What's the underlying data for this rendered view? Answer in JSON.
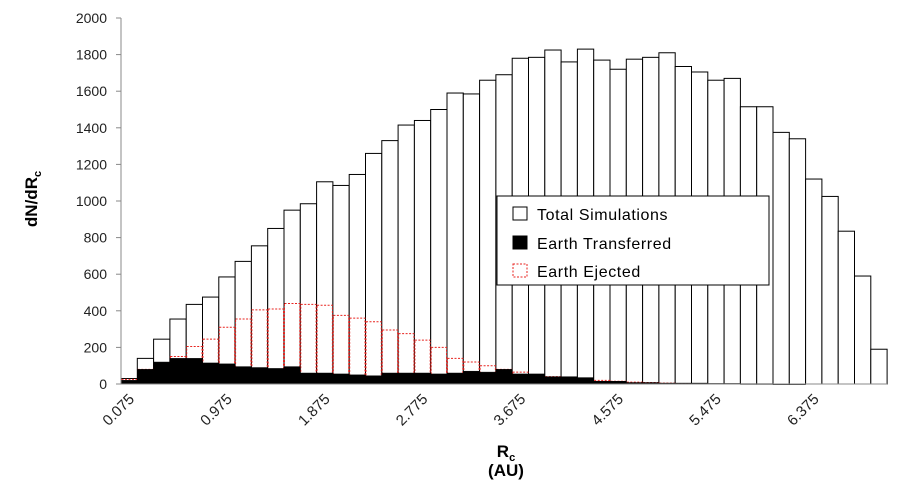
{
  "chart_data": {
    "type": "bar",
    "title": "",
    "xlabel": "R",
    "xlabel_subscript": "c",
    "xlabel_units": "(AU)",
    "ylabel": "dN/dR",
    "ylabel_subscript": "c",
    "ylim": [
      0,
      2000
    ],
    "yticks": [
      0,
      200,
      400,
      600,
      800,
      1000,
      1200,
      1400,
      1600,
      1800,
      2000
    ],
    "xtick_labels": [
      "0.075",
      "0.975",
      "1.875",
      "2.775",
      "3.675",
      "4.575",
      "5.475",
      "6.375"
    ],
    "xtick_every": 6,
    "grid": false,
    "legend_position": "center-right",
    "colors": {
      "total_fill": "#ffffff",
      "total_edge": "#000000",
      "transferred_fill": "#000000",
      "ejected_edge": "#e8231f"
    },
    "series": [
      {
        "name": "Total Simulations",
        "values": [
          30,
          140,
          245,
          355,
          435,
          475,
          585,
          670,
          755,
          850,
          950,
          985,
          1105,
          1085,
          1145,
          1260,
          1330,
          1415,
          1440,
          1500,
          1590,
          1585,
          1660,
          1690,
          1780,
          1785,
          1825,
          1760,
          1830,
          1770,
          1720,
          1775,
          1785,
          1810,
          1735,
          1705,
          1660,
          1670,
          1515,
          1515,
          1375,
          1340,
          1120,
          1025,
          835,
          590,
          190
        ]
      },
      {
        "name": "Earth Transferred",
        "values": [
          20,
          80,
          120,
          140,
          140,
          115,
          110,
          95,
          90,
          85,
          95,
          60,
          60,
          55,
          50,
          45,
          60,
          60,
          60,
          55,
          60,
          70,
          65,
          80,
          55,
          55,
          40,
          40,
          35,
          15,
          15,
          8,
          8,
          5,
          5,
          5,
          3,
          3,
          2,
          2,
          1,
          1,
          0,
          0,
          0,
          0,
          0
        ]
      },
      {
        "name": "Earth Ejected",
        "values": [
          25,
          80,
          110,
          150,
          205,
          245,
          310,
          355,
          405,
          410,
          440,
          435,
          430,
          375,
          360,
          340,
          295,
          275,
          240,
          200,
          140,
          120,
          100,
          80,
          65,
          50,
          40,
          30,
          25,
          20,
          15,
          10,
          8,
          5,
          3,
          0,
          0,
          0,
          0,
          0,
          0,
          0,
          0,
          0,
          0,
          0,
          0
        ]
      }
    ]
  }
}
